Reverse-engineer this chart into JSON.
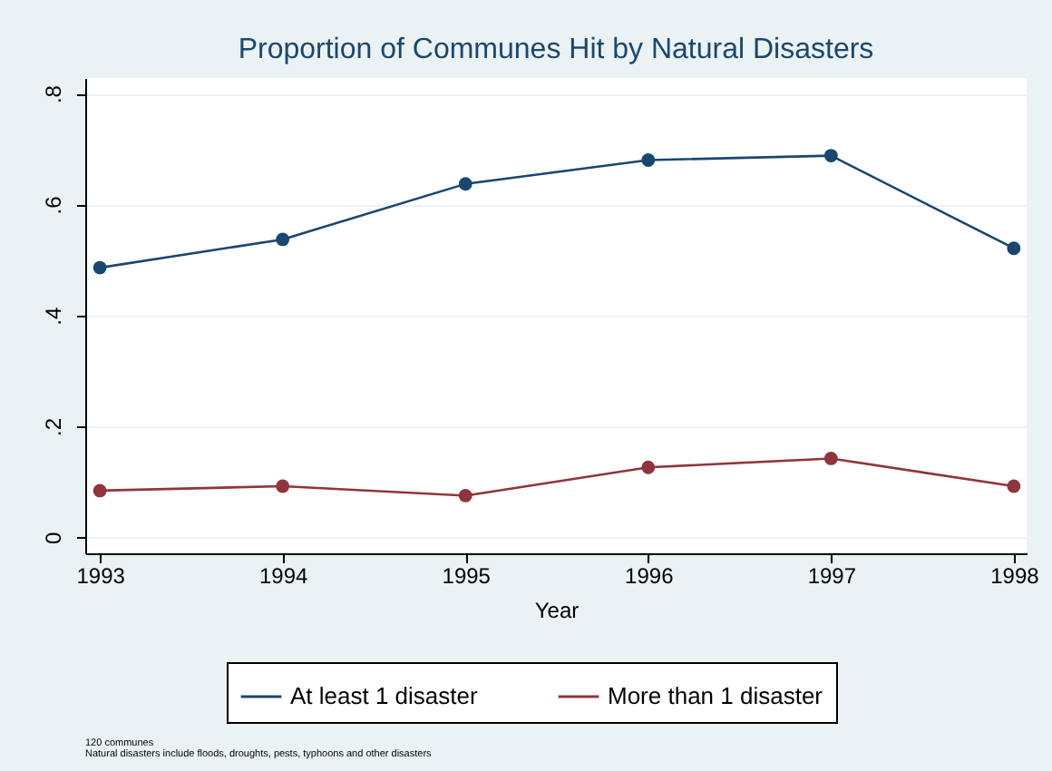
{
  "chart_data": {
    "type": "line",
    "title": "Proportion of Communes Hit by Natural Disasters",
    "xlabel": "Year",
    "x": [
      1993,
      1994,
      1995,
      1996,
      1997,
      1998
    ],
    "series": [
      {
        "name": "At least 1 disaster",
        "color": "#1a476f",
        "values": [
          0.486,
          0.537,
          0.637,
          0.68,
          0.688,
          0.521
        ]
      },
      {
        "name": "More than 1 disaster",
        "color": "#90353b",
        "values": [
          0.084,
          0.092,
          0.075,
          0.126,
          0.142,
          0.092
        ]
      }
    ],
    "xlim": [
      1992.92,
      1998.07
    ],
    "xticks": [
      1993,
      1994,
      1995,
      1996,
      1997,
      1998
    ],
    "ylim": [
      -0.029,
      0.828
    ],
    "yticks": [
      {
        "value": 0,
        "label": "0"
      },
      {
        "value": 0.2,
        "label": ".2"
      },
      {
        "value": 0.4,
        "label": ".4"
      },
      {
        "value": 0.6,
        "label": ".6"
      },
      {
        "value": 0.8,
        "label": ".8"
      }
    ],
    "grid": "y",
    "legend": "bottom",
    "marker": "circle",
    "line_style": "solid",
    "annotations": [
      "120 communes",
      "Natural disasters include floods, droughts, pests, typhoons and other disasters"
    ]
  }
}
